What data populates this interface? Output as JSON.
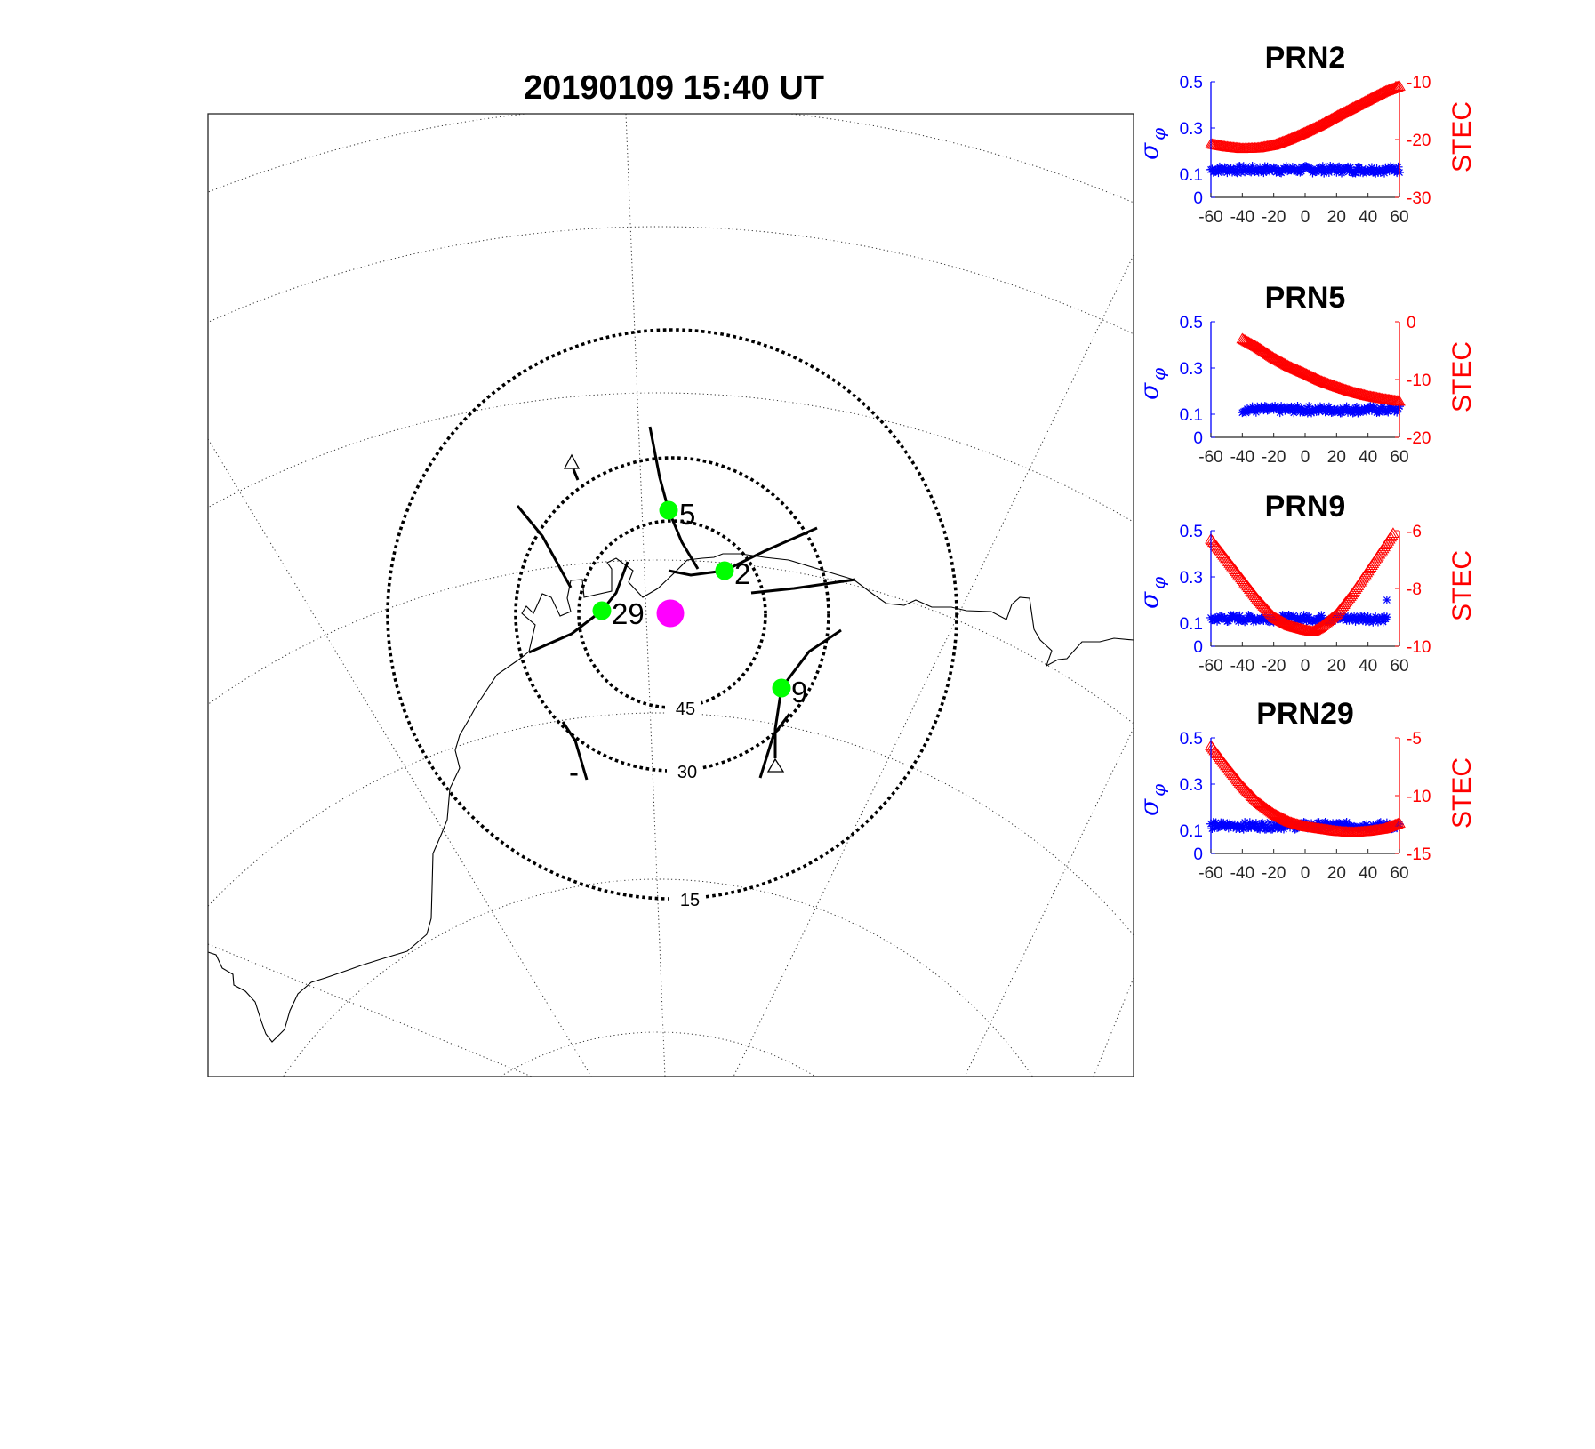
{
  "map": {
    "title": "20190109 15:40 UT",
    "elevation_labels": [
      "45",
      "30",
      "15"
    ],
    "satellites": [
      {
        "prn": "5"
      },
      {
        "prn": "2"
      },
      {
        "prn": "29"
      },
      {
        "prn": "9"
      }
    ],
    "stray_label": "-",
    "colors": {
      "satellite": "#00ff00",
      "station": "#ff00ff"
    }
  },
  "chart_data": [
    {
      "type": "scatter",
      "title": "PRN2",
      "xlim": [
        -60,
        60
      ],
      "xticks": [
        -60,
        -40,
        -20,
        0,
        20,
        40,
        60
      ],
      "left_axis": {
        "label_main": "σ",
        "label_sub": "φ",
        "ylim": [
          0,
          0.5
        ],
        "ticks": [
          "0.5",
          "0.3",
          "0.1",
          "0"
        ],
        "tick_values": [
          0.5,
          0.3,
          0.1,
          0
        ],
        "color": "#0000ff"
      },
      "right_axis": {
        "label": "STEC",
        "ylim": [
          -30,
          -10
        ],
        "ticks": [
          "-10",
          "-20",
          "-30"
        ],
        "tick_values": [
          -10,
          -20,
          -30
        ],
        "color": "#ff0000"
      },
      "sigma": {
        "x_range": [
          -60,
          60
        ],
        "value": 0.12
      },
      "stec": {
        "x_range": [
          -60,
          60
        ],
        "points": [
          [
            -60,
            -20.8
          ],
          [
            -50,
            -21.3
          ],
          [
            -40,
            -21.6
          ],
          [
            -30,
            -21.5
          ],
          [
            -20,
            -21
          ],
          [
            -10,
            -20
          ],
          [
            0,
            -18.8
          ],
          [
            10,
            -17.5
          ],
          [
            20,
            -16
          ],
          [
            30,
            -14.6
          ],
          [
            40,
            -13.2
          ],
          [
            50,
            -11.8
          ],
          [
            60,
            -10.8
          ]
        ]
      }
    },
    {
      "type": "scatter",
      "title": "PRN5",
      "xlim": [
        -60,
        60
      ],
      "xticks": [
        -60,
        -40,
        -20,
        0,
        20,
        40,
        60
      ],
      "left_axis": {
        "label_main": "σ",
        "label_sub": "φ",
        "ylim": [
          0,
          0.5
        ],
        "ticks": [
          "0.5",
          "0.3",
          "0.1",
          "0"
        ],
        "tick_values": [
          0.5,
          0.3,
          0.1,
          0
        ],
        "color": "#0000ff"
      },
      "right_axis": {
        "label": "STEC",
        "ylim": [
          -20,
          0
        ],
        "ticks": [
          "0",
          "-10",
          "-20"
        ],
        "tick_values": [
          0,
          -10,
          -20
        ],
        "color": "#ff0000"
      },
      "sigma": {
        "x_range": [
          -40,
          60
        ],
        "value": 0.12
      },
      "stec": {
        "x_range": [
          -40,
          60
        ],
        "points": [
          [
            -40,
            -3
          ],
          [
            -30,
            -4.5
          ],
          [
            -20,
            -6.3
          ],
          [
            -10,
            -7.8
          ],
          [
            0,
            -9
          ],
          [
            10,
            -10.3
          ],
          [
            20,
            -11.3
          ],
          [
            30,
            -12.2
          ],
          [
            40,
            -12.9
          ],
          [
            50,
            -13.4
          ],
          [
            60,
            -13.8
          ]
        ]
      }
    },
    {
      "type": "scatter",
      "title": "PRN9",
      "xlim": [
        -60,
        60
      ],
      "xticks": [
        -60,
        -40,
        -20,
        0,
        20,
        40,
        60
      ],
      "left_axis": {
        "label_main": "σ",
        "label_sub": "φ",
        "ylim": [
          0,
          0.5
        ],
        "ticks": [
          "0.5",
          "0.3",
          "0.1",
          "0"
        ],
        "tick_values": [
          0.5,
          0.3,
          0.1,
          0
        ],
        "color": "#0000ff"
      },
      "right_axis": {
        "label": "STEC",
        "ylim": [
          -10,
          -6
        ],
        "ticks": [
          "-6",
          "-8",
          "-10"
        ],
        "tick_values": [
          -6,
          -8,
          -10
        ],
        "color": "#ff0000"
      },
      "sigma": {
        "x_range": [
          -60,
          52
        ],
        "value": 0.12,
        "outlier": [
          52,
          0.2
        ]
      },
      "stec": {
        "x_range": [
          -60,
          56
        ],
        "points": [
          [
            -60,
            -6.3
          ],
          [
            -50,
            -7
          ],
          [
            -40,
            -7.7
          ],
          [
            -30,
            -8.4
          ],
          [
            -20,
            -9
          ],
          [
            -10,
            -9.3
          ],
          [
            0,
            -9.45
          ],
          [
            5,
            -9.5
          ],
          [
            10,
            -9.35
          ],
          [
            20,
            -8.9
          ],
          [
            30,
            -8.2
          ],
          [
            40,
            -7.4
          ],
          [
            50,
            -6.6
          ],
          [
            56,
            -6.1
          ]
        ]
      }
    },
    {
      "type": "scatter",
      "title": "PRN29",
      "xlim": [
        -60,
        60
      ],
      "xticks": [
        -60,
        -40,
        -20,
        0,
        20,
        40,
        60
      ],
      "left_axis": {
        "label_main": "σ",
        "label_sub": "φ",
        "ylim": [
          0,
          0.5
        ],
        "ticks": [
          "0.5",
          "0.3",
          "0.1",
          "0"
        ],
        "tick_values": [
          0.5,
          0.3,
          0.1,
          0
        ],
        "color": "#0000ff"
      },
      "right_axis": {
        "label": "STEC",
        "ylim": [
          -15,
          -5
        ],
        "ticks": [
          "-5",
          "-10",
          "-15"
        ],
        "tick_values": [
          -5,
          -10,
          -15
        ],
        "color": "#ff0000"
      },
      "sigma": {
        "x_range": [
          -60,
          60
        ],
        "value": 0.12
      },
      "stec": {
        "x_range": [
          -60,
          60
        ],
        "points": [
          [
            -60,
            -5.7
          ],
          [
            -50,
            -7.5
          ],
          [
            -40,
            -9.2
          ],
          [
            -30,
            -10.6
          ],
          [
            -20,
            -11.6
          ],
          [
            -10,
            -12.3
          ],
          [
            0,
            -12.7
          ],
          [
            10,
            -12.9
          ],
          [
            20,
            -13.1
          ],
          [
            30,
            -13.2
          ],
          [
            40,
            -13.1
          ],
          [
            50,
            -12.9
          ],
          [
            60,
            -12.4
          ]
        ]
      }
    }
  ]
}
